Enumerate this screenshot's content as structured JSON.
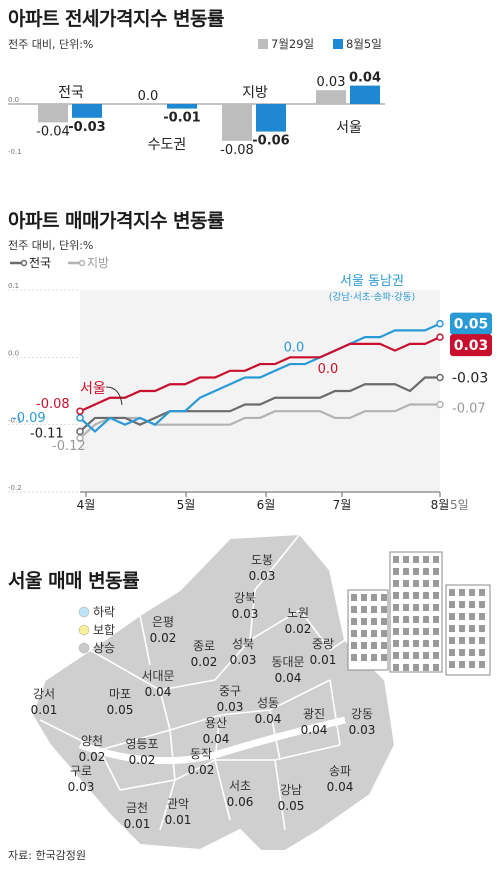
{
  "sections": {
    "jeonse_title": "아파트 전세가격지수 변동률",
    "jeonse_sub": "전주 대비, 단위:%",
    "sale_title": "아파트 매매가격지수 변동률",
    "sale_sub": "전주 대비, 단위:%",
    "map_title": "서울 매매 변동률",
    "source": "자료: 한국감정원"
  },
  "colors": {
    "prev": "#bdbdbd",
    "curr": "#1e88d2",
    "seoul": "#c8102e",
    "southeast": "#2a9ad6",
    "national": "#6b6b6b",
    "regional": "#b3b3b3",
    "map_fill": "#cfcfcf",
    "map_stroke": "#ffffff"
  },
  "chart_data": [
    {
      "type": "bar",
      "title": "아파트 전세가격지수 변동률",
      "categories": [
        "전국",
        "수도권",
        "지방",
        "서울"
      ],
      "series": [
        {
          "name": "7월29일",
          "values": [
            -0.04,
            0.0,
            -0.08,
            0.03
          ]
        },
        {
          "name": "8월5일",
          "values": [
            -0.03,
            -0.01,
            -0.06,
            0.04
          ]
        }
      ],
      "value_labels": [
        [
          "-0.04",
          "0.0",
          "-0.08",
          "0.03"
        ],
        [
          "-0.03",
          "-0.01",
          "-0.06",
          "0.04"
        ]
      ],
      "ylim": [
        -0.1,
        0.05
      ],
      "yticks": [
        "0.0",
        "-0.1"
      ]
    },
    {
      "type": "line",
      "title": "아파트 매매가격지수 변동률",
      "x_labels": [
        "4월",
        "5월",
        "6월",
        "7월",
        "8월"
      ],
      "x_suffix": "5일",
      "yticks": [
        "0.1",
        "0.0",
        "-0.1",
        "-0.2"
      ],
      "ylim": [
        -0.2,
        0.1
      ],
      "legend": [
        "전국",
        "지방"
      ],
      "series": [
        {
          "name": "서울 동남권",
          "sublabel": "(강남·서초·송파·강동)",
          "values": [
            -0.09,
            -0.11,
            -0.09,
            -0.1,
            -0.09,
            -0.1,
            -0.08,
            -0.08,
            -0.06,
            -0.05,
            -0.04,
            -0.03,
            -0.03,
            -0.02,
            -0.01,
            -0.01,
            0.0,
            0.01,
            0.02,
            0.03,
            0.03,
            0.04,
            0.04,
            0.04,
            0.05
          ],
          "end_label": "0.05",
          "start_label": "-0.09"
        },
        {
          "name": "서울",
          "values": [
            -0.08,
            -0.07,
            -0.06,
            -0.06,
            -0.05,
            -0.05,
            -0.04,
            -0.04,
            -0.03,
            -0.03,
            -0.02,
            -0.02,
            -0.01,
            -0.01,
            0.0,
            0.0,
            0.0,
            0.01,
            0.02,
            0.02,
            0.02,
            0.01,
            0.02,
            0.02,
            0.03
          ],
          "end_label": "0.03",
          "start_label": "-0.08",
          "mid_label": "0.0"
        },
        {
          "name": "전국",
          "values": [
            -0.11,
            -0.09,
            -0.09,
            -0.09,
            -0.1,
            -0.09,
            -0.08,
            -0.08,
            -0.08,
            -0.08,
            -0.08,
            -0.07,
            -0.07,
            -0.06,
            -0.06,
            -0.06,
            -0.06,
            -0.05,
            -0.05,
            -0.04,
            -0.04,
            -0.04,
            -0.05,
            -0.03,
            -0.03
          ],
          "end_label": "-0.03",
          "start_label": "-0.11"
        },
        {
          "name": "지방",
          "values": [
            -0.12,
            -0.1,
            -0.09,
            -0.09,
            -0.09,
            -0.1,
            -0.1,
            -0.1,
            -0.1,
            -0.1,
            -0.1,
            -0.09,
            -0.09,
            -0.08,
            -0.08,
            -0.08,
            -0.08,
            -0.09,
            -0.09,
            -0.08,
            -0.08,
            -0.08,
            -0.07,
            -0.07,
            -0.07
          ],
          "end_label": "-0.07",
          "start_label": "-0.12"
        }
      ],
      "mid_label_southeast": "0.0"
    }
  ],
  "map": {
    "legend": [
      "하락",
      "보합",
      "상승"
    ],
    "legend_colors": [
      "#bfe3f7",
      "#f6ef9a",
      "#c9c9c9"
    ],
    "districts": [
      {
        "name": "도봉",
        "value": "0.03"
      },
      {
        "name": "강북",
        "value": "0.03"
      },
      {
        "name": "노원",
        "value": "0.02"
      },
      {
        "name": "은평",
        "value": "0.02"
      },
      {
        "name": "종로",
        "value": "0.02"
      },
      {
        "name": "성북",
        "value": "0.03"
      },
      {
        "name": "중랑",
        "value": "0.01"
      },
      {
        "name": "동대문",
        "value": "0.04"
      },
      {
        "name": "서대문",
        "value": "0.04"
      },
      {
        "name": "마포",
        "value": "0.05"
      },
      {
        "name": "중구",
        "value": "0.03"
      },
      {
        "name": "성동",
        "value": "0.04"
      },
      {
        "name": "광진",
        "value": "0.04"
      },
      {
        "name": "강동",
        "value": "0.03"
      },
      {
        "name": "강서",
        "value": "0.01"
      },
      {
        "name": "용산",
        "value": "0.04"
      },
      {
        "name": "양천",
        "value": "0.02"
      },
      {
        "name": "영등포",
        "value": "0.02"
      },
      {
        "name": "동작",
        "value": "0.02"
      },
      {
        "name": "구로",
        "value": "0.03"
      },
      {
        "name": "서초",
        "value": "0.06"
      },
      {
        "name": "강남",
        "value": "0.05"
      },
      {
        "name": "송파",
        "value": "0.04"
      },
      {
        "name": "금천",
        "value": "0.01"
      },
      {
        "name": "관악",
        "value": "0.01"
      }
    ]
  }
}
